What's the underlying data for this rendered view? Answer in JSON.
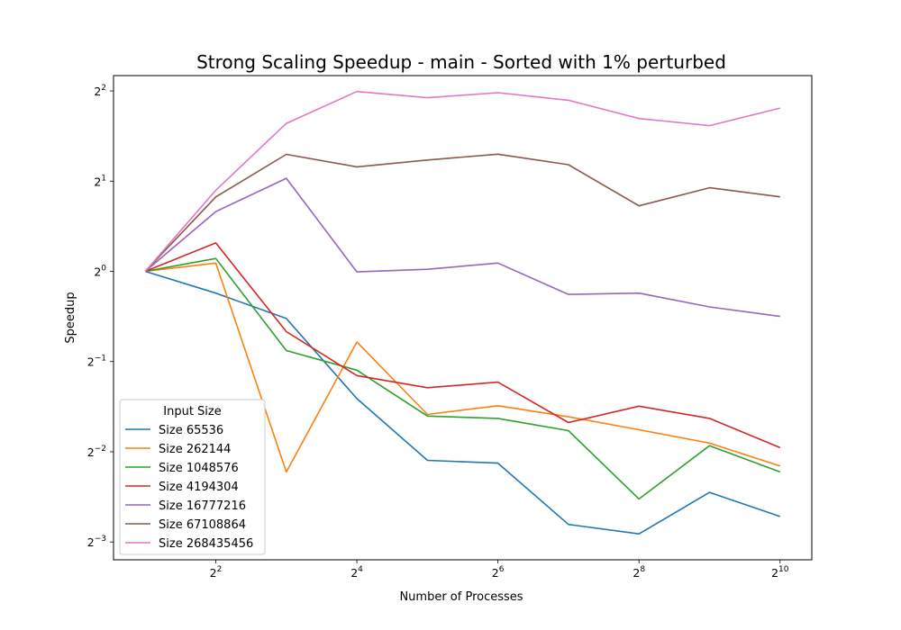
{
  "chart_data": {
    "type": "line",
    "title": "Strong Scaling Speedup - main - Sorted with 1% perturbed",
    "xlabel": "Number of Processes",
    "ylabel": "Speedup",
    "x_scale": "log2",
    "y_scale": "log2",
    "xlim": [
      2,
      1024
    ],
    "ylim": [
      0.109,
      4.5
    ],
    "x_ticks": [
      {
        "value": 4,
        "base": "2",
        "exp": "2"
      },
      {
        "value": 16,
        "base": "2",
        "exp": "4"
      },
      {
        "value": 64,
        "base": "2",
        "exp": "6"
      },
      {
        "value": 256,
        "base": "2",
        "exp": "8"
      },
      {
        "value": 1024,
        "base": "2",
        "exp": "10"
      }
    ],
    "y_ticks": [
      {
        "value": 0.125,
        "base": "2",
        "exp": "−3"
      },
      {
        "value": 0.25,
        "base": "2",
        "exp": "−2"
      },
      {
        "value": 0.5,
        "base": "2",
        "exp": "−1"
      },
      {
        "value": 1,
        "base": "2",
        "exp": "0"
      },
      {
        "value": 2,
        "base": "2",
        "exp": "1"
      },
      {
        "value": 4,
        "base": "2",
        "exp": "2"
      }
    ],
    "x": [
      2,
      4,
      8,
      16,
      32,
      64,
      128,
      256,
      512,
      1024
    ],
    "legend_title": "Input Size",
    "legend_position": "lower-left",
    "series": [
      {
        "name": "Size 65536",
        "color": "#1f77b4",
        "values": [
          1.0,
          0.846,
          0.696,
          0.376,
          0.234,
          0.229,
          0.143,
          0.133,
          0.183,
          0.152
        ]
      },
      {
        "name": "Size 262144",
        "color": "#ff7f0e",
        "values": [
          1.0,
          1.066,
          0.214,
          0.581,
          0.333,
          0.356,
          0.327,
          0.296,
          0.267,
          0.224
        ]
      },
      {
        "name": "Size 1048576",
        "color": "#2ca02c",
        "values": [
          1.0,
          1.104,
          0.544,
          0.468,
          0.329,
          0.323,
          0.294,
          0.174,
          0.262,
          0.214
        ]
      },
      {
        "name": "Size 4194304",
        "color": "#d62728",
        "values": [
          1.0,
          1.244,
          0.629,
          0.449,
          0.409,
          0.427,
          0.313,
          0.355,
          0.323,
          0.258
        ]
      },
      {
        "name": "Size 16777216",
        "color": "#9467bd",
        "values": [
          1.0,
          1.583,
          2.044,
          0.996,
          1.016,
          1.066,
          0.838,
          0.846,
          0.761,
          0.707
        ]
      },
      {
        "name": "Size 67108864",
        "color": "#8c564b",
        "values": [
          1.0,
          1.772,
          2.457,
          2.232,
          2.352,
          2.461,
          2.269,
          1.654,
          1.901,
          1.773
        ]
      },
      {
        "name": "Size 268435456",
        "color": "#e377c2",
        "values": [
          1.0,
          1.865,
          3.117,
          3.981,
          3.797,
          3.946,
          3.724,
          3.236,
          3.063,
          3.506
        ]
      }
    ]
  }
}
